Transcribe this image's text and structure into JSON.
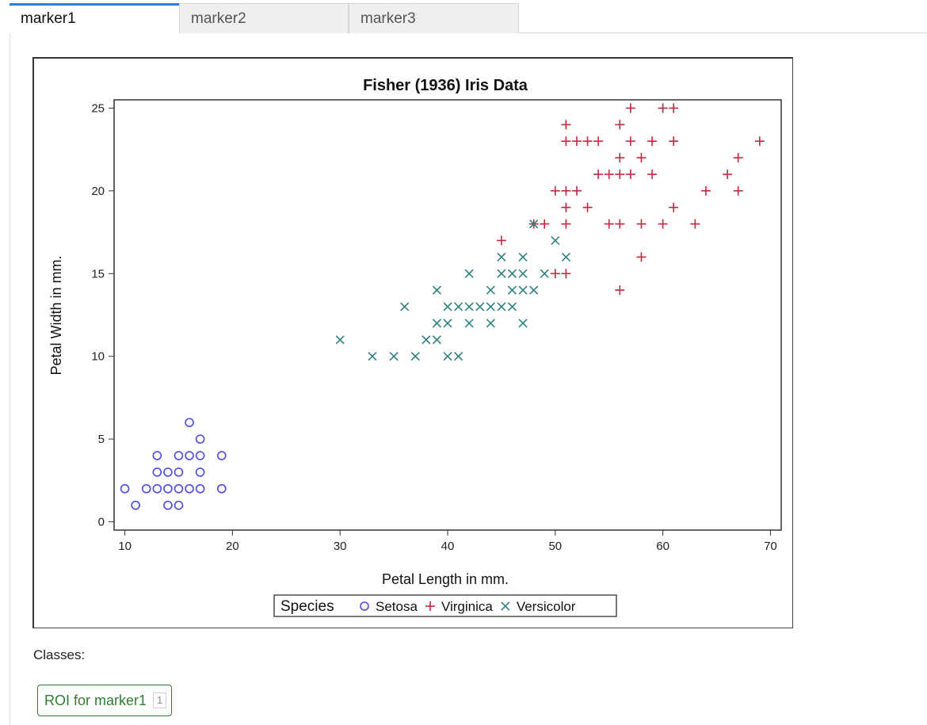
{
  "tabs": [
    {
      "label": "marker1",
      "active": true
    },
    {
      "label": "marker2",
      "active": false
    },
    {
      "label": "marker3",
      "active": false
    }
  ],
  "classes_label": "Classes:",
  "roi": {
    "label": "ROI for marker1",
    "count": "1",
    "color": "#2e7d32"
  },
  "chart_data": {
    "type": "scatter",
    "title": "Fisher (1936) Iris Data",
    "xlabel": "Petal Length in mm.",
    "ylabel": "Petal Width in mm.",
    "xlim": [
      9,
      71
    ],
    "ylim": [
      -0.5,
      25.5
    ],
    "xticks": [
      10,
      20,
      30,
      40,
      50,
      60,
      70
    ],
    "yticks": [
      0,
      5,
      10,
      15,
      20,
      25
    ],
    "legend": {
      "title": "Species",
      "placement": "bottom"
    },
    "series": [
      {
        "name": "Setosa",
        "marker": "circle",
        "color": "#4a4ae0",
        "points": [
          [
            10,
            2
          ],
          [
            11,
            1
          ],
          [
            12,
            2
          ],
          [
            13,
            2
          ],
          [
            13,
            3
          ],
          [
            13,
            4
          ],
          [
            14,
            1
          ],
          [
            14,
            2
          ],
          [
            14,
            3
          ],
          [
            15,
            1
          ],
          [
            15,
            2
          ],
          [
            15,
            3
          ],
          [
            15,
            4
          ],
          [
            16,
            2
          ],
          [
            16,
            4
          ],
          [
            16,
            6
          ],
          [
            17,
            2
          ],
          [
            17,
            3
          ],
          [
            17,
            4
          ],
          [
            17,
            5
          ],
          [
            19,
            2
          ],
          [
            19,
            4
          ]
        ]
      },
      {
        "name": "Virginica",
        "marker": "plus",
        "color": "#c0283d",
        "points": [
          [
            45,
            17
          ],
          [
            48,
            18
          ],
          [
            49,
            18
          ],
          [
            50,
            15
          ],
          [
            50,
            20
          ],
          [
            51,
            15
          ],
          [
            51,
            18
          ],
          [
            51,
            19
          ],
          [
            51,
            20
          ],
          [
            51,
            23
          ],
          [
            51,
            24
          ],
          [
            52,
            20
          ],
          [
            52,
            23
          ],
          [
            53,
            19
          ],
          [
            53,
            23
          ],
          [
            54,
            21
          ],
          [
            54,
            23
          ],
          [
            55,
            18
          ],
          [
            55,
            21
          ],
          [
            56,
            14
          ],
          [
            56,
            18
          ],
          [
            56,
            21
          ],
          [
            56,
            22
          ],
          [
            56,
            24
          ],
          [
            57,
            21
          ],
          [
            57,
            23
          ],
          [
            57,
            25
          ],
          [
            58,
            16
          ],
          [
            58,
            18
          ],
          [
            58,
            22
          ],
          [
            59,
            21
          ],
          [
            59,
            23
          ],
          [
            60,
            18
          ],
          [
            60,
            25
          ],
          [
            61,
            19
          ],
          [
            61,
            23
          ],
          [
            61,
            25
          ],
          [
            63,
            18
          ],
          [
            64,
            20
          ],
          [
            66,
            21
          ],
          [
            67,
            20
          ],
          [
            67,
            22
          ],
          [
            69,
            23
          ]
        ]
      },
      {
        "name": "Versicolor",
        "marker": "x",
        "color": "#2f8080",
        "points": [
          [
            30,
            11
          ],
          [
            33,
            10
          ],
          [
            35,
            10
          ],
          [
            36,
            13
          ],
          [
            37,
            10
          ],
          [
            38,
            11
          ],
          [
            39,
            11
          ],
          [
            39,
            12
          ],
          [
            39,
            14
          ],
          [
            40,
            10
          ],
          [
            40,
            12
          ],
          [
            40,
            13
          ],
          [
            41,
            10
          ],
          [
            41,
            13
          ],
          [
            42,
            12
          ],
          [
            42,
            13
          ],
          [
            42,
            15
          ],
          [
            43,
            13
          ],
          [
            44,
            12
          ],
          [
            44,
            13
          ],
          [
            44,
            14
          ],
          [
            45,
            13
          ],
          [
            45,
            15
          ],
          [
            45,
            16
          ],
          [
            46,
            13
          ],
          [
            46,
            14
          ],
          [
            46,
            15
          ],
          [
            47,
            12
          ],
          [
            47,
            14
          ],
          [
            47,
            15
          ],
          [
            47,
            16
          ],
          [
            48,
            14
          ],
          [
            48,
            18
          ],
          [
            49,
            15
          ],
          [
            50,
            17
          ],
          [
            51,
            16
          ]
        ]
      }
    ]
  }
}
